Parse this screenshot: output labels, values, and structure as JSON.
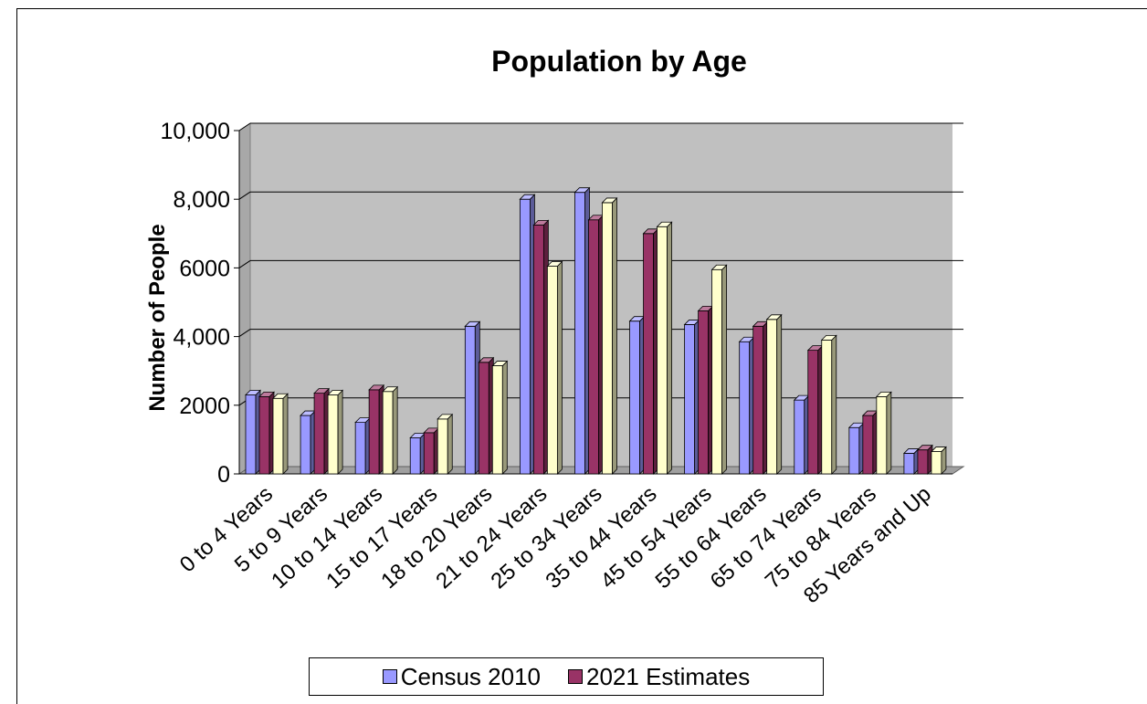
{
  "chart_data": {
    "type": "bar",
    "title": "Population by Age",
    "xlabel": "",
    "ylabel": "Number of People",
    "ylim": [
      0,
      10000
    ],
    "yticks": [
      {
        "value": 0,
        "label": "0"
      },
      {
        "value": 2000,
        "label": "2000"
      },
      {
        "value": 4000,
        "label": "4,000"
      },
      {
        "value": 6000,
        "label": "6000"
      },
      {
        "value": 8000,
        "label": "8,000"
      },
      {
        "value": 10000,
        "label": "10,000"
      }
    ],
    "grid": true,
    "legend_position": "bottom",
    "categories": [
      "0 to 4 Years",
      "5 to 9 Years",
      "10 to 14 Years",
      "15 to 17 Years",
      "18 to 20 Years",
      "21 to 24 Years",
      "25 to 34 Years",
      "35 to 44 Years",
      "45 to 54 Years",
      "55 to 64 Years",
      "65 to 74 Years",
      "75 to 84 Years",
      "85 Years and Up"
    ],
    "series": [
      {
        "name": "Census 2010",
        "color": "#9999ff",
        "values": [
          2300,
          1700,
          1500,
          1050,
          4300,
          8000,
          8200,
          4450,
          4350,
          3850,
          2150,
          1350,
          600
        ]
      },
      {
        "name": "2021 Estimates",
        "color": "#993366",
        "values": [
          2250,
          2350,
          2450,
          1200,
          3250,
          7250,
          7400,
          7000,
          4750,
          4300,
          3600,
          1700,
          700
        ]
      },
      {
        "name": "",
        "color": "#ffffcc",
        "values": [
          2200,
          2300,
          2400,
          1600,
          3150,
          6050,
          7900,
          7200,
          5950,
          4500,
          3900,
          2250,
          650
        ]
      }
    ]
  },
  "colors": {
    "plot_background": "#c0c0c0",
    "floor": "#a0a0a0",
    "gridline": "#000000"
  }
}
